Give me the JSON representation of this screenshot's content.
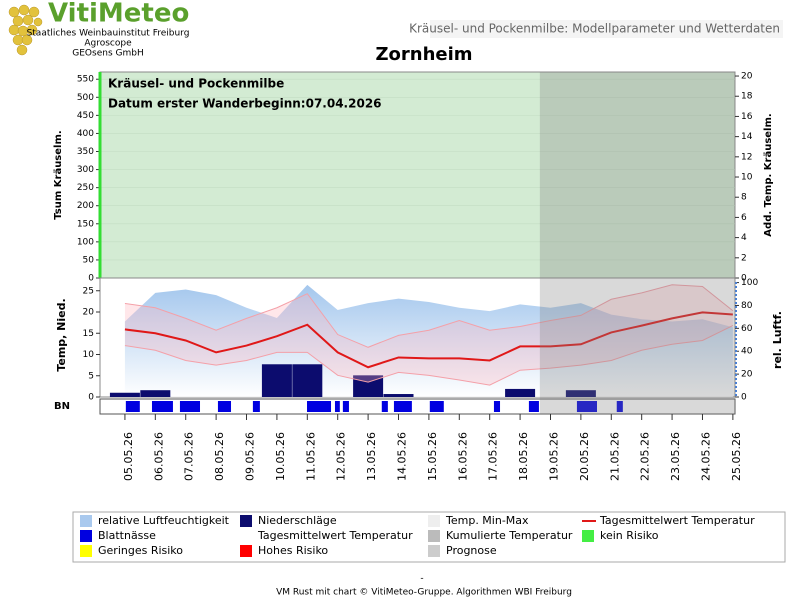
{
  "header": {
    "logo": "VitiMeteo",
    "lines": [
      "Staatliches Weinbauinstitut Freiburg",
      "Agroscope",
      "GEOsens GmbH"
    ],
    "banner": "Kräusel- und Pockenmilbe: Modellparameter und Wetterdaten"
  },
  "chart_data": [
    {
      "type": "risk",
      "title": "Zornheim",
      "annotations": [
        "Kräusel- und Pockenmilbe",
        "Datum  erster Wanderbeginn:07.04.2026"
      ],
      "ylabel": "Tsum Kräuselm.",
      "y2label": "Add. Temp. Kräuselm.",
      "zone_color": "#d3ebd3",
      "ylim": [
        0,
        570
      ],
      "yticks": [
        0,
        50,
        100,
        150,
        200,
        250,
        300,
        350,
        400,
        450,
        500,
        550
      ],
      "y2lim": [
        0,
        20.4
      ],
      "y2ticks": [
        0,
        2,
        4,
        6,
        8,
        10,
        12,
        14,
        16,
        18,
        20
      ],
      "grid": true
    },
    {
      "type": "weather",
      "ylabel": "Temp, Nied.",
      "y2label": "rel. Luftf.",
      "categories": [
        "05.05.26",
        "06.05.26",
        "07.05.26",
        "08.05.26",
        "09.05.26",
        "10.05.26",
        "11.05.26",
        "12.05.26",
        "13.05.26",
        "14.05.26",
        "15.05.26",
        "16.05.26",
        "17.05.26",
        "18.05.26",
        "19.05.26",
        "20.05.26",
        "21.05.26",
        "22.05.26",
        "23.05.26",
        "24.05.26",
        "25.05.26"
      ],
      "xlim": [
        -0.82,
        20.07
      ],
      "prognosis_from": 13.65,
      "ylim": [
        0,
        28
      ],
      "yticks": [
        0,
        5,
        10,
        15,
        20,
        25
      ],
      "y2lim": [
        0,
        104
      ],
      "y2ticks": [
        0,
        20,
        40,
        60,
        80,
        100
      ],
      "series": [
        {
          "kind": "area",
          "axis": "y2",
          "color": "#9cc3ec",
          "values": [
            66,
            91,
            94,
            89,
            78,
            69,
            98,
            76,
            82,
            86,
            83,
            78,
            75,
            81,
            78,
            82,
            72,
            68,
            66,
            68,
            61
          ]
        },
        {
          "kind": "bar",
          "color": "#0c0c6e",
          "values": [
            1,
            1.6,
            0,
            0,
            0,
            7.7,
            7.7,
            0,
            5.1,
            0.7,
            0,
            0,
            0,
            1.9,
            0,
            1.6,
            0,
            0,
            0,
            0,
            0
          ]
        },
        {
          "kind": "band-max",
          "color": "#f4a0a8",
          "values": [
            22,
            21,
            18.5,
            15.7,
            18.5,
            21,
            24.3,
            14.7,
            11.7,
            14.5,
            15.7,
            18,
            15.7,
            16.6,
            18,
            19.2,
            23,
            24.5,
            26.4,
            26,
            20.3
          ]
        },
        {
          "kind": "band-min",
          "color": "#f4a0a8",
          "values": [
            12.1,
            11,
            8.6,
            7.5,
            8.6,
            10.5,
            10.5,
            5.1,
            3.5,
            5.8,
            5.1,
            4,
            2.8,
            6.3,
            6.8,
            7.5,
            8.6,
            11,
            12.4,
            13.3,
            16.8
          ]
        },
        {
          "kind": "line",
          "color": "#e01818",
          "values": [
            15.9,
            15,
            13.3,
            10.5,
            12.1,
            14.3,
            17,
            10.5,
            7,
            9.3,
            9.1,
            9.1,
            8.6,
            11.9,
            11.9,
            12.4,
            15.2,
            16.8,
            18.5,
            19.9,
            19.4
          ]
        }
      ]
    },
    {
      "type": "strip",
      "ylabel": "BN",
      "color": "#0000e0",
      "segments": [
        [
          0.03,
          0.49
        ],
        [
          0.89,
          1.58
        ],
        [
          1.81,
          2.47
        ],
        [
          3.06,
          3.49
        ],
        [
          4.21,
          4.44
        ],
        [
          5.99,
          6.78
        ],
        [
          6.91,
          7.07
        ],
        [
          7.17,
          7.37
        ],
        [
          8.45,
          8.65
        ],
        [
          8.85,
          9.44
        ],
        [
          10.03,
          10.49
        ],
        [
          12.14,
          12.34
        ],
        [
          13.29,
          13.62
        ],
        [
          14.87,
          15.53
        ],
        [
          16.18,
          16.38
        ]
      ]
    }
  ],
  "legend": [
    {
      "name": "relative Luftfeuchtigkeit",
      "color": "#a9c9ee"
    },
    {
      "name": "Niederschläge",
      "color": "#0c0c6e"
    },
    {
      "name": "Temp. Min-Max",
      "color": "#eeeeee"
    },
    {
      "name": "Tagesmittelwert Temperatur",
      "color": "#e01818",
      "line": true
    },
    {
      "name": "Blattnässe",
      "color": "#0000e0"
    },
    {
      "name": "Tagesmittelwert Temperatur",
      "color": "#ffffff"
    },
    {
      "name": "Kumulierte Temperatur",
      "color": "#bbbbbb"
    },
    {
      "name": "kein Risiko",
      "color": "#44ee44"
    },
    {
      "name": "Geringes Risiko",
      "color": "#ffff00"
    },
    {
      "name": "Hohes Risiko",
      "color": "#ff0000"
    },
    {
      "name": "Prognose",
      "color": "#cccccc"
    }
  ],
  "footer": [
    "-",
    "VM Rust mit chart © VitiMeteo-Gruppe. Algorithmen WBI Freiburg"
  ]
}
